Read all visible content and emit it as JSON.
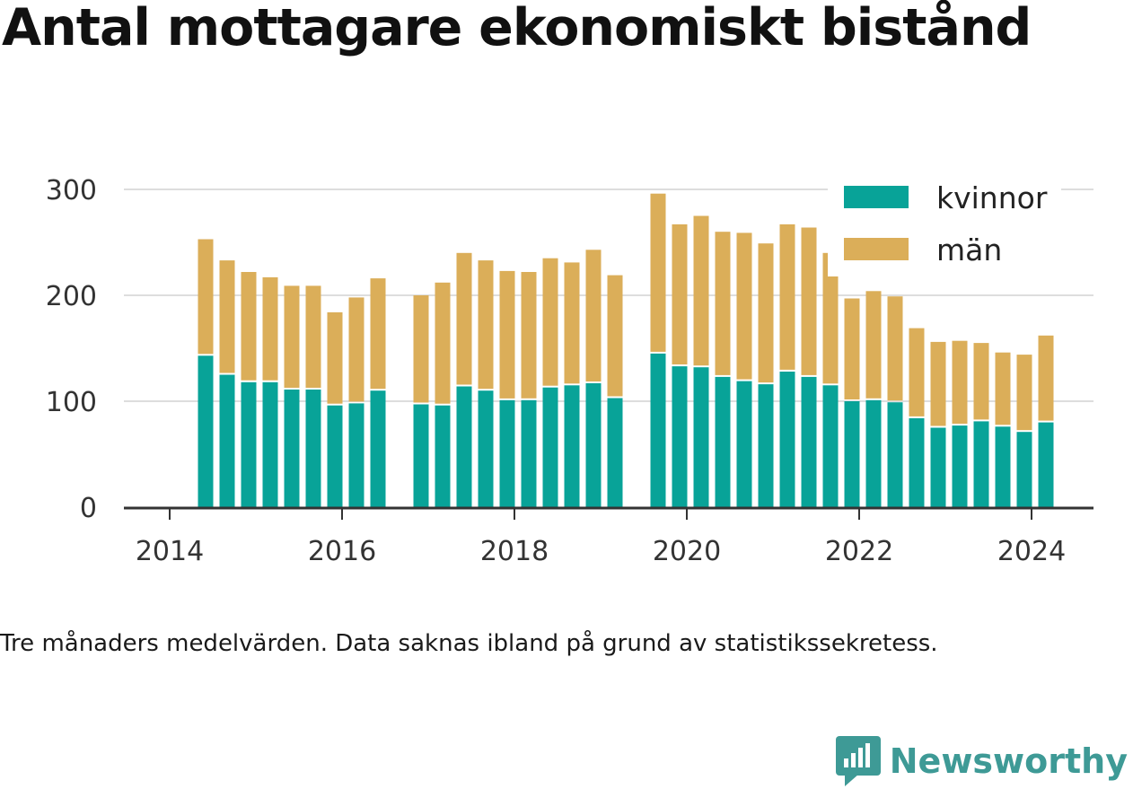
{
  "title": "Antal mottagare ekonomiskt bistånd",
  "caption": "Tre månaders medelvärden. Data saknas ibland på grund av statistikssekretess.",
  "brand": {
    "name": "Newsworthy",
    "icon": "newsworthy-logo-icon",
    "color": "#3e9a96"
  },
  "chart_data": {
    "type": "bar",
    "stacked": true,
    "x_ticks": [
      "2014",
      "2016",
      "2018",
      "2020",
      "2022",
      "2024"
    ],
    "y_ticks": [
      "0",
      "100",
      "200",
      "300"
    ],
    "ylim": [
      0,
      300
    ],
    "grid": true,
    "legend_position": "top-right",
    "periods": [
      "2014-06",
      "2014-09",
      "2014-12",
      "2015-03",
      "2015-06",
      "2015-09",
      "2015-12",
      "2016-03",
      "2016-06",
      "2016-12",
      "2017-03",
      "2017-06",
      "2017-09",
      "2017-12",
      "2018-03",
      "2018-06",
      "2018-09",
      "2018-12",
      "2019-03",
      "2019-09",
      "2019-12",
      "2020-03",
      "2020-06",
      "2020-09",
      "2020-12",
      "2021-03",
      "2021-06",
      "2021-09",
      "2021-12",
      "2022-03",
      "2022-06",
      "2022-09",
      "2022-12",
      "2023-03",
      "2023-06",
      "2023-09",
      "2023-12",
      "2024-03"
    ],
    "series": [
      {
        "name": "kvinnor",
        "color": "#08a398",
        "values": [
          143,
          125,
          118,
          118,
          111,
          111,
          96,
          98,
          110,
          97,
          96,
          114,
          110,
          101,
          101,
          113,
          115,
          117,
          103,
          145,
          133,
          132,
          123,
          119,
          116,
          128,
          123,
          115,
          100,
          101,
          99,
          84,
          75,
          77,
          81,
          76,
          71,
          80
        ]
      },
      {
        "name": "män",
        "color": "#dbae59",
        "values": [
          110,
          108,
          104,
          99,
          98,
          98,
          88,
          100,
          106,
          103,
          116,
          126,
          123,
          122,
          121,
          122,
          116,
          126,
          116,
          151,
          134,
          143,
          137,
          140,
          133,
          139,
          141,
          125,
          97,
          103,
          100,
          85,
          81,
          80,
          74,
          70,
          73,
          82
        ]
      }
    ]
  }
}
